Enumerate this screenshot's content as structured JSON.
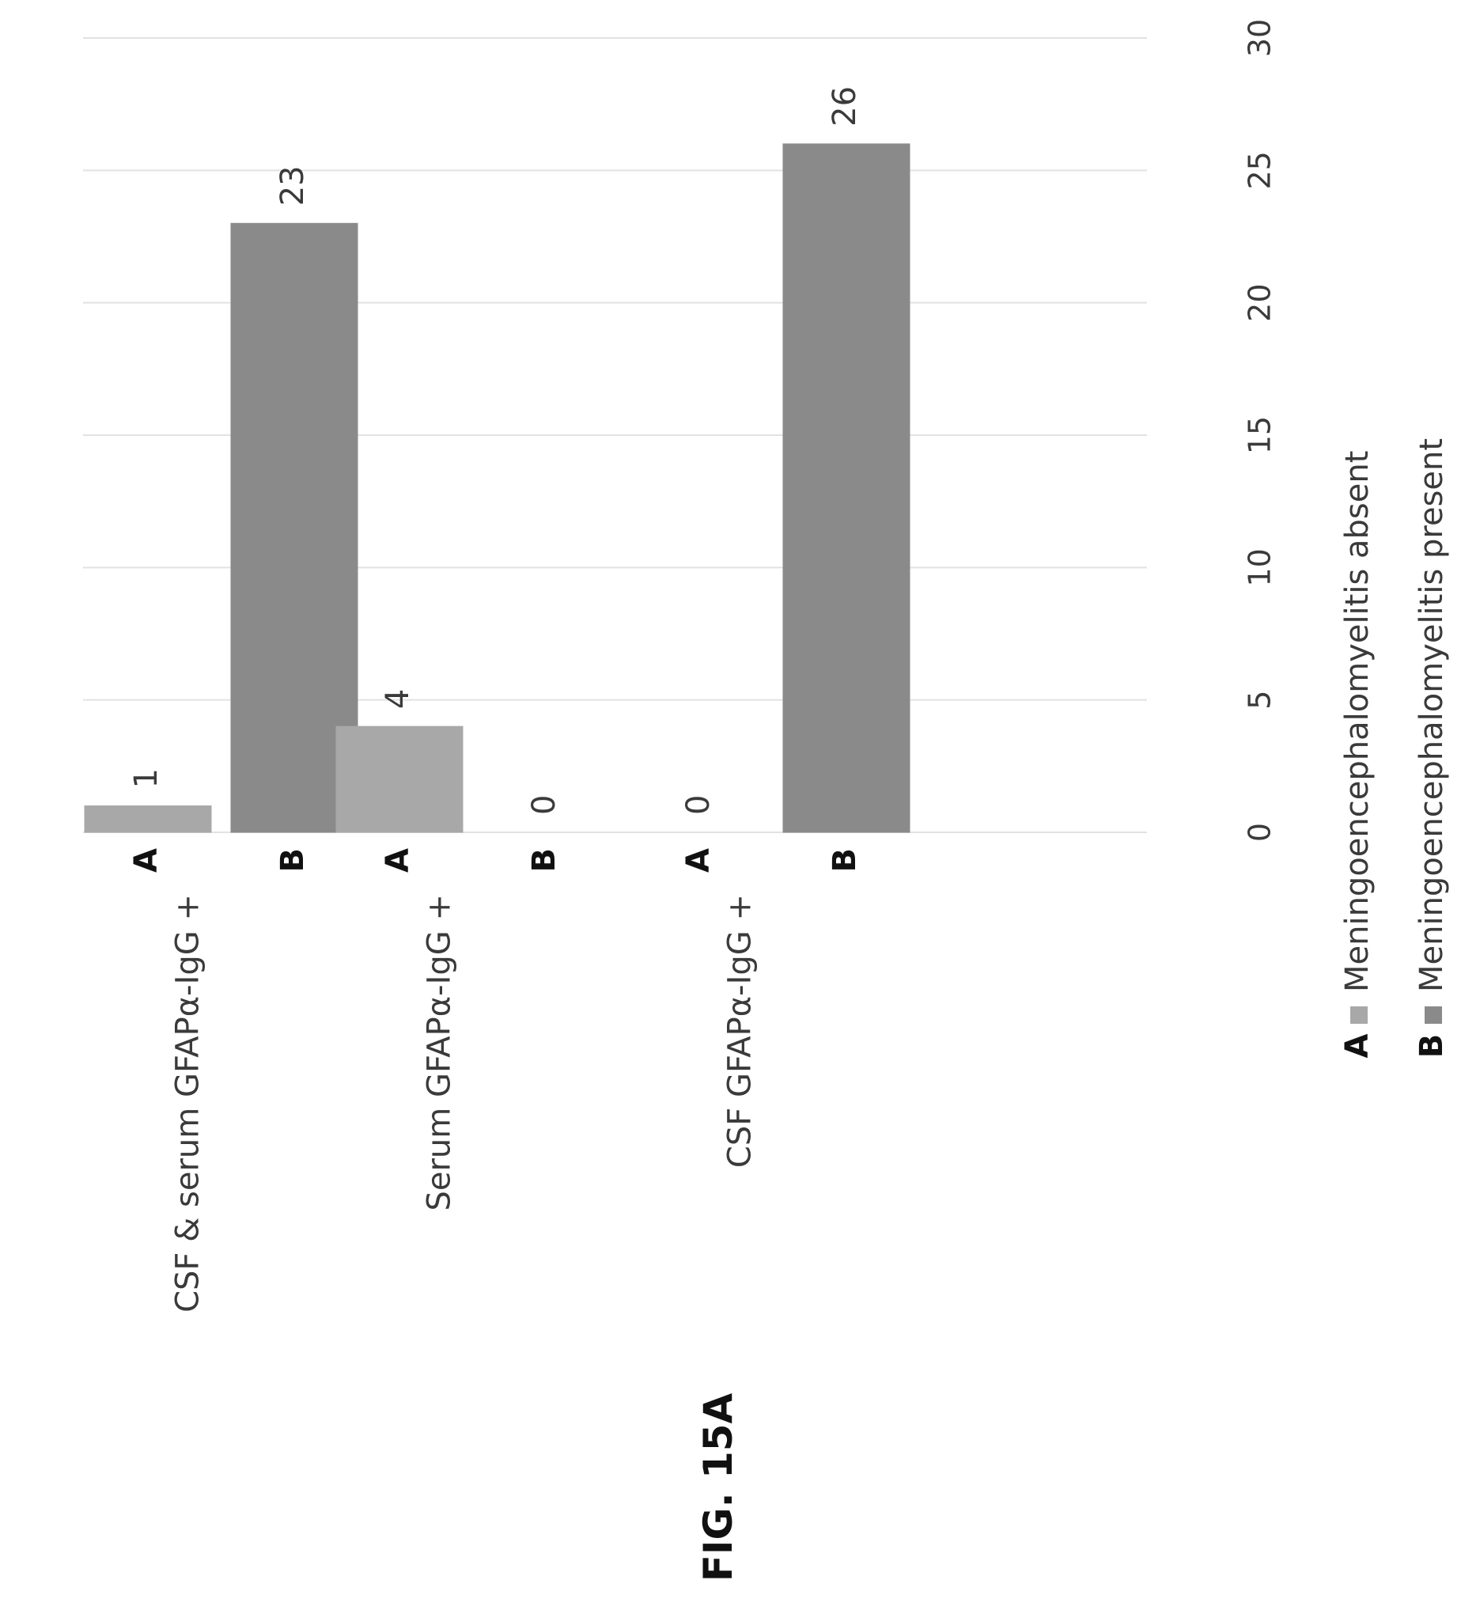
{
  "figure_label": "FIG. 15A",
  "chart_data": {
    "type": "bar",
    "orientation": "horizontal",
    "page_rotation": "rotated 90 degrees counter-clockwise",
    "categories": [
      "CSF & serum GFAPα-IgG +",
      "Serum GFAPα-IgG +",
      "CSF GFAPα-IgG +"
    ],
    "series": [
      {
        "key": "A",
        "name": "Meningoencephalomyelitis absent",
        "color": "#a8a8a8",
        "values": [
          1,
          4,
          0
        ]
      },
      {
        "key": "B",
        "name": "Meningoencephalomyelitis present",
        "color": "#8a8a8a",
        "values": [
          23,
          0,
          26
        ]
      }
    ],
    "xlim": [
      0,
      30
    ],
    "ticks": [
      0,
      5,
      10,
      15,
      20,
      25,
      30
    ],
    "grid": true,
    "legend_position": "bottom"
  }
}
